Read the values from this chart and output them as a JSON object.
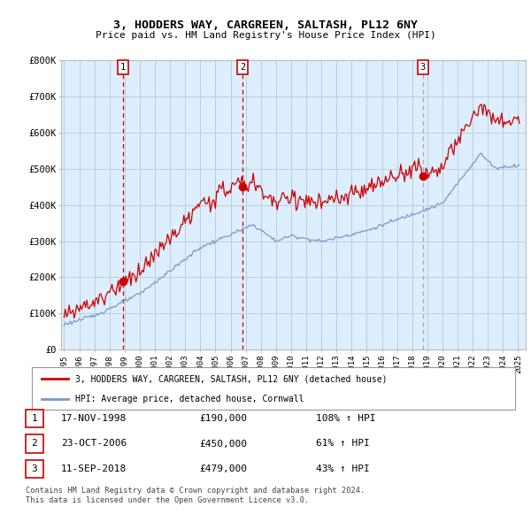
{
  "title": "3, HODDERS WAY, CARGREEN, SALTASH, PL12 6NY",
  "subtitle": "Price paid vs. HM Land Registry's House Price Index (HPI)",
  "line1_label": "3, HODDERS WAY, CARGREEN, SALTASH, PL12 6NY (detached house)",
  "line2_label": "HPI: Average price, detached house, Cornwall",
  "line1_color": "#cc0000",
  "line2_color": "#7799cc",
  "background_color": "#ffffff",
  "chart_bg_color": "#ddeeff",
  "grid_color": "#bbccdd",
  "vline1_color": "#cc0000",
  "vline2_color": "#cc0000",
  "vline3_color": "#aaaaaa",
  "sale1_date_x": 1998.88,
  "sale2_date_x": 2006.81,
  "sale3_date_x": 2018.69,
  "sale1_price": 190000,
  "sale2_price": 450000,
  "sale3_price": 479000,
  "table_rows": [
    [
      "1",
      "17-NOV-1998",
      "£190,000",
      "108% ↑ HPI"
    ],
    [
      "2",
      "23-OCT-2006",
      "£450,000",
      "61% ↑ HPI"
    ],
    [
      "3",
      "11-SEP-2018",
      "£479,000",
      "43% ↑ HPI"
    ]
  ],
  "footnote1": "Contains HM Land Registry data © Crown copyright and database right 2024.",
  "footnote2": "This data is licensed under the Open Government Licence v3.0.",
  "ylim_max": 800000,
  "yticks": [
    0,
    100000,
    200000,
    300000,
    400000,
    500000,
    600000,
    700000,
    800000
  ],
  "ytick_labels": [
    "£0",
    "£100K",
    "£200K",
    "£300K",
    "£400K",
    "£500K",
    "£600K",
    "£700K",
    "£800K"
  ],
  "xmin": 1995.0,
  "xmax": 2025.5
}
